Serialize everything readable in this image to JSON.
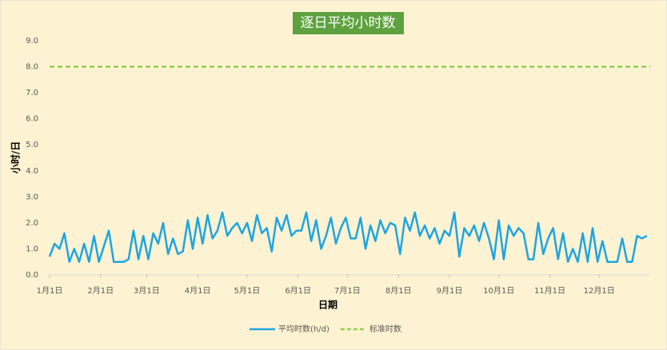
{
  "chart_data": {
    "type": "line",
    "title": "逐日平均小时数",
    "x_label": "日期",
    "y_label": "小时/日",
    "x": [
      1,
      4,
      7,
      10,
      13,
      16,
      19,
      22,
      25,
      28,
      31,
      34,
      37,
      40,
      43,
      46,
      49,
      52,
      55,
      58,
      61,
      64,
      67,
      70,
      73,
      76,
      79,
      82,
      85,
      88,
      91,
      94,
      97,
      100,
      103,
      106,
      109,
      112,
      115,
      118,
      121,
      124,
      127,
      130,
      133,
      136,
      139,
      142,
      145,
      148,
      151,
      154,
      157,
      160,
      163,
      166,
      169,
      172,
      175,
      178,
      181,
      184,
      187,
      190,
      193,
      196,
      199,
      202,
      205,
      208,
      211,
      214,
      217,
      220,
      223,
      226,
      229,
      232,
      235,
      238,
      241,
      244,
      247,
      250,
      253,
      256,
      259,
      262,
      265,
      268,
      271,
      274,
      277,
      280,
      283,
      286,
      289,
      292,
      295,
      298,
      301,
      304,
      307,
      310,
      313,
      316,
      319,
      322,
      325,
      328,
      331,
      334,
      337,
      340,
      343,
      346,
      349,
      352,
      355,
      358,
      361,
      364
    ],
    "series": [
      {
        "name": "平均时数(h/d)",
        "color": "#1ea5e0",
        "values": [
          0.7,
          1.2,
          1.0,
          1.6,
          0.5,
          1.0,
          0.5,
          1.2,
          0.5,
          1.5,
          0.5,
          1.1,
          1.7,
          0.5,
          0.5,
          0.5,
          0.6,
          1.7,
          0.6,
          1.5,
          0.6,
          1.6,
          1.2,
          2.0,
          0.8,
          1.4,
          0.8,
          0.9,
          2.1,
          1.0,
          2.2,
          1.2,
          2.3,
          1.4,
          1.7,
          2.4,
          1.5,
          1.8,
          2.0,
          1.6,
          2.0,
          1.3,
          2.3,
          1.6,
          1.8,
          0.9,
          2.2,
          1.7,
          2.3,
          1.5,
          1.7,
          1.7,
          2.4,
          1.3,
          2.1,
          1.0,
          1.5,
          2.2,
          1.2,
          1.8,
          2.2,
          1.4,
          1.4,
          2.2,
          1.0,
          1.9,
          1.3,
          2.1,
          1.6,
          2.0,
          1.9,
          0.8,
          2.2,
          1.7,
          2.4,
          1.5,
          1.9,
          1.4,
          1.8,
          1.2,
          1.7,
          1.5,
          2.4,
          0.7,
          1.8,
          1.5,
          1.9,
          1.3,
          2.0,
          1.4,
          0.6,
          2.1,
          0.6,
          1.9,
          1.5,
          1.8,
          1.6,
          0.6,
          0.6,
          2.0,
          0.8,
          1.4,
          1.8,
          0.6,
          1.6,
          0.5,
          1.0,
          0.5,
          1.6,
          0.5,
          1.8,
          0.5,
          1.3,
          0.5,
          0.5,
          0.5,
          1.4,
          0.5,
          0.5,
          1.5,
          1.4,
          1.5
        ]
      }
    ],
    "reference_lines": [
      {
        "name": "标准时数",
        "color": "#92d050",
        "value": 8,
        "dashed": true
      }
    ],
    "xlim": [
      1,
      366
    ],
    "xticks": [
      {
        "value": 1,
        "label": "1月1日"
      },
      {
        "value": 32,
        "label": "2月1日"
      },
      {
        "value": 60,
        "label": "3月1日"
      },
      {
        "value": 91,
        "label": "4月1日"
      },
      {
        "value": 121,
        "label": "5月1日"
      },
      {
        "value": 152,
        "label": "6月1日"
      },
      {
        "value": 182,
        "label": "7月1日"
      },
      {
        "value": 213,
        "label": "8月1日"
      },
      {
        "value": 244,
        "label": "9月1日"
      },
      {
        "value": 274,
        "label": "10月1日"
      },
      {
        "value": 305,
        "label": "11月1日"
      },
      {
        "value": 335,
        "label": "12月1日"
      }
    ],
    "ylim": [
      0,
      9
    ],
    "yticks": [
      {
        "value": 0,
        "label": "0.0"
      },
      {
        "value": 1,
        "label": "1.0"
      },
      {
        "value": 2,
        "label": "2.0"
      },
      {
        "value": 3,
        "label": "3.0"
      },
      {
        "value": 4,
        "label": "4.0"
      },
      {
        "value": 5,
        "label": "5.0"
      },
      {
        "value": 6,
        "label": "6.0"
      },
      {
        "value": 7,
        "label": "7.0"
      },
      {
        "value": 8,
        "label": "8.0"
      },
      {
        "value": 9,
        "label": "9.0"
      }
    ],
    "grid": false,
    "legend": "bottom",
    "background": "#fdf3d2",
    "title_background": "#5ea23f"
  }
}
